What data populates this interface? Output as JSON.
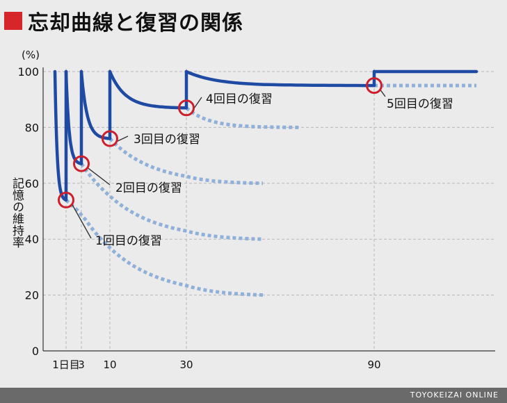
{
  "title": "忘却曲線と復習の関係",
  "footer": "TOYOKEIZAI ONLINE",
  "colors": {
    "title_square": "#d7262a",
    "memory_line": "#1f4aa3",
    "forget_dotted": "#8fb0d8",
    "review_circle": "#cc1f2b",
    "gridline": "#b7b7b7",
    "axis": "#333333",
    "text": "#111111"
  },
  "chart_data": {
    "type": "line",
    "title": "忘却曲線と復習の関係",
    "ylabel": "記憶の維持率",
    "yunit": "(%)",
    "ylim": [
      0,
      100
    ],
    "yticks": [
      0,
      20,
      40,
      60,
      80,
      100
    ],
    "xtick_labels": [
      {
        "x": 1,
        "label": "1日目"
      },
      {
        "x": 3,
        "label": "3"
      },
      {
        "x": 10,
        "label": "10"
      },
      {
        "x": 30,
        "label": "30"
      },
      {
        "x": 90,
        "label": "90"
      }
    ],
    "grid": true,
    "memory_segments": [
      {
        "from_x": 0,
        "to_x": 1,
        "start": 100,
        "end": 54
      },
      {
        "from_x": 1,
        "to_x": 3,
        "start": 100,
        "end": 67
      },
      {
        "from_x": 3,
        "to_x": 10,
        "start": 100,
        "end": 76
      },
      {
        "from_x": 10,
        "to_x": 30,
        "start": 100,
        "end": 87
      },
      {
        "from_x": 30,
        "to_x": 90,
        "start": 100,
        "end": 95
      },
      {
        "from_x": 90,
        "to_x": 120,
        "start": 100,
        "end": 100
      }
    ],
    "forgetting_curves": [
      {
        "from_x": 1,
        "to_x": 60,
        "start": 54,
        "end": 20
      },
      {
        "from_x": 3,
        "to_x": 60,
        "start": 67,
        "end": 40
      },
      {
        "from_x": 10,
        "to_x": 60,
        "start": 76,
        "end": 60
      },
      {
        "from_x": 30,
        "to_x": 70,
        "start": 87,
        "end": 80
      },
      {
        "from_x": 90,
        "to_x": 120,
        "start": 95,
        "end": 95
      }
    ],
    "reviews": [
      {
        "x": 1,
        "y": 54,
        "label": "1回目の復習"
      },
      {
        "x": 3,
        "y": 67,
        "label": "2回目の復習"
      },
      {
        "x": 10,
        "y": 76,
        "label": "3回目の復習"
      },
      {
        "x": 30,
        "y": 87,
        "label": "4回目の復習"
      },
      {
        "x": 90,
        "y": 95,
        "label": "5回目の復習"
      }
    ]
  }
}
